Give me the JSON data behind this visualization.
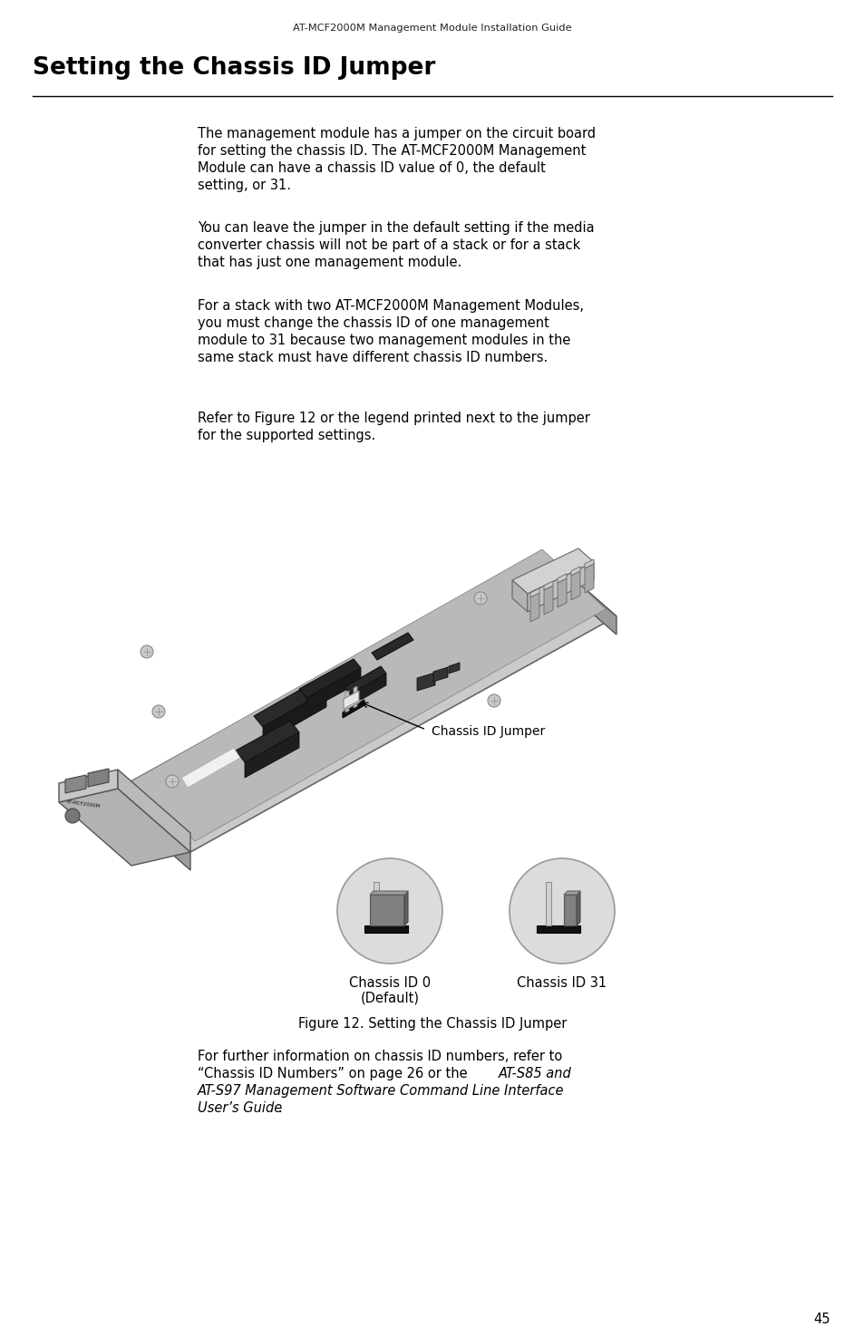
{
  "bg_color": "#ffffff",
  "text_color": "#000000",
  "header_text": "AT-MCF2000M Management Module Installation Guide",
  "title": "Setting the Chassis ID Jumper",
  "page_number": "45",
  "para1_l1": "The management module has a jumper on the circuit board",
  "para1_l2": "for setting the chassis ID. The AT-MCF2000M Management",
  "para1_l3": "Module can have a chassis ID value of 0, the default",
  "para1_l4": "setting, or 31.",
  "para2_l1": "You can leave the jumper in the default setting if the media",
  "para2_l2": "converter chassis will not be part of a stack or for a stack",
  "para2_l3": "that has just one management module.",
  "para3_l1": "For a stack with two AT-MCF2000M Management Modules,",
  "para3_l2": "you must change the chassis ID of one management",
  "para3_l3": "module to 31 because two management modules in the",
  "para3_l4": "same stack must have different chassis ID numbers.",
  "para4_l1": "Refer to Figure 12 or the legend printed next to the jumper",
  "para4_l2": "for the supported settings.",
  "figure_caption": "Figure 12. Setting the Chassis ID Jumper",
  "label_chassis_id_jumper": "Chassis ID Jumper",
  "label_chassis_id_0_l1": "Chassis ID 0",
  "label_chassis_id_0_l2": "(Default)",
  "label_chassis_id_31": "Chassis ID 31",
  "footer_l1": "For further information on chassis ID numbers, refer to",
  "footer_l2_normal": "“Chassis ID Numbers” on page 26 or the ",
  "footer_l2_italic": "AT-S85 and",
  "footer_l3_italic": "AT-S97 Management Software Command Line Interface",
  "footer_l4_italic": "User’s Guide",
  "footer_l4_end": "."
}
